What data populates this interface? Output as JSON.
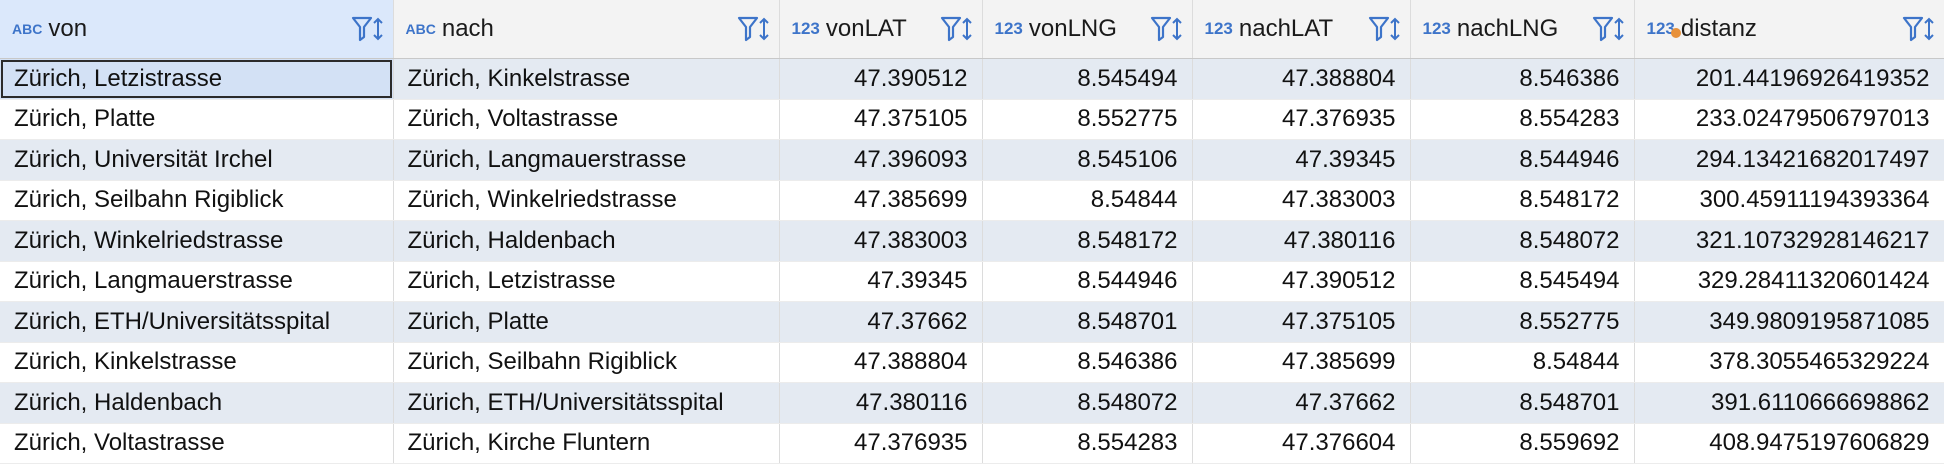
{
  "columns": [
    {
      "key": "von",
      "type": "ABC",
      "title": "von",
      "align": "text"
    },
    {
      "key": "nach",
      "type": "ABC",
      "title": "nach",
      "align": "text"
    },
    {
      "key": "vonLAT",
      "type": "123",
      "title": "vonLAT",
      "align": "num"
    },
    {
      "key": "vonLNG",
      "type": "123",
      "title": "vonLNG",
      "align": "num"
    },
    {
      "key": "nachLAT",
      "type": "123",
      "title": "nachLAT",
      "align": "num"
    },
    {
      "key": "nachLNG",
      "type": "123",
      "title": "nachLNG",
      "align": "num"
    },
    {
      "key": "distanz",
      "type": "123",
      "title": "distanz",
      "align": "num",
      "badge_dot_color": "#e8913a"
    }
  ],
  "rows": [
    [
      "Zürich, Letzistrasse",
      "Zürich, Kinkelstrasse",
      "47.390512",
      "8.545494",
      "47.388804",
      "8.546386",
      "201.44196926419352"
    ],
    [
      "Zürich, Platte",
      "Zürich, Voltastrasse",
      "47.375105",
      "8.552775",
      "47.376935",
      "8.554283",
      "233.02479506797013"
    ],
    [
      "Zürich, Universität Irchel",
      "Zürich, Langmauerstrasse",
      "47.396093",
      "8.545106",
      "47.39345",
      "8.544946",
      "294.13421682017497"
    ],
    [
      "Zürich, Seilbahn Rigiblick",
      "Zürich, Winkelriedstrasse",
      "47.385699",
      "8.54844",
      "47.383003",
      "8.548172",
      "300.45911194393364"
    ],
    [
      "Zürich, Winkelriedstrasse",
      "Zürich, Haldenbach",
      "47.383003",
      "8.548172",
      "47.380116",
      "8.548072",
      "321.10732928146217"
    ],
    [
      "Zürich, Langmauerstrasse",
      "Zürich, Letzistrasse",
      "47.39345",
      "8.544946",
      "47.390512",
      "8.545494",
      "329.28411320601424"
    ],
    [
      "Zürich, ETH/Universitätsspital",
      "Zürich, Platte",
      "47.37662",
      "8.548701",
      "47.375105",
      "8.552775",
      "349.9809195871085"
    ],
    [
      "Zürich, Kinkelstrasse",
      "Zürich, Seilbahn Rigiblick",
      "47.388804",
      "8.546386",
      "47.385699",
      "8.54844",
      "378.3055465329224"
    ],
    [
      "Zürich, Haldenbach",
      "Zürich, ETH/Universitätsspital",
      "47.380116",
      "8.548072",
      "47.37662",
      "8.548701",
      "391.6110666698862"
    ],
    [
      "Zürich, Voltastrasse",
      "Zürich, Kirche Fluntern",
      "47.376935",
      "8.554283",
      "47.376604",
      "8.559692",
      "408.9475197606829"
    ]
  ],
  "colors": {
    "header_bg": "#f3f3f3",
    "header_active_bg": "#dbe8fb",
    "row_alt_bg": "#e4eaf2",
    "type_badge": "#3d74c9",
    "filter_icon": "#3d74c9"
  }
}
